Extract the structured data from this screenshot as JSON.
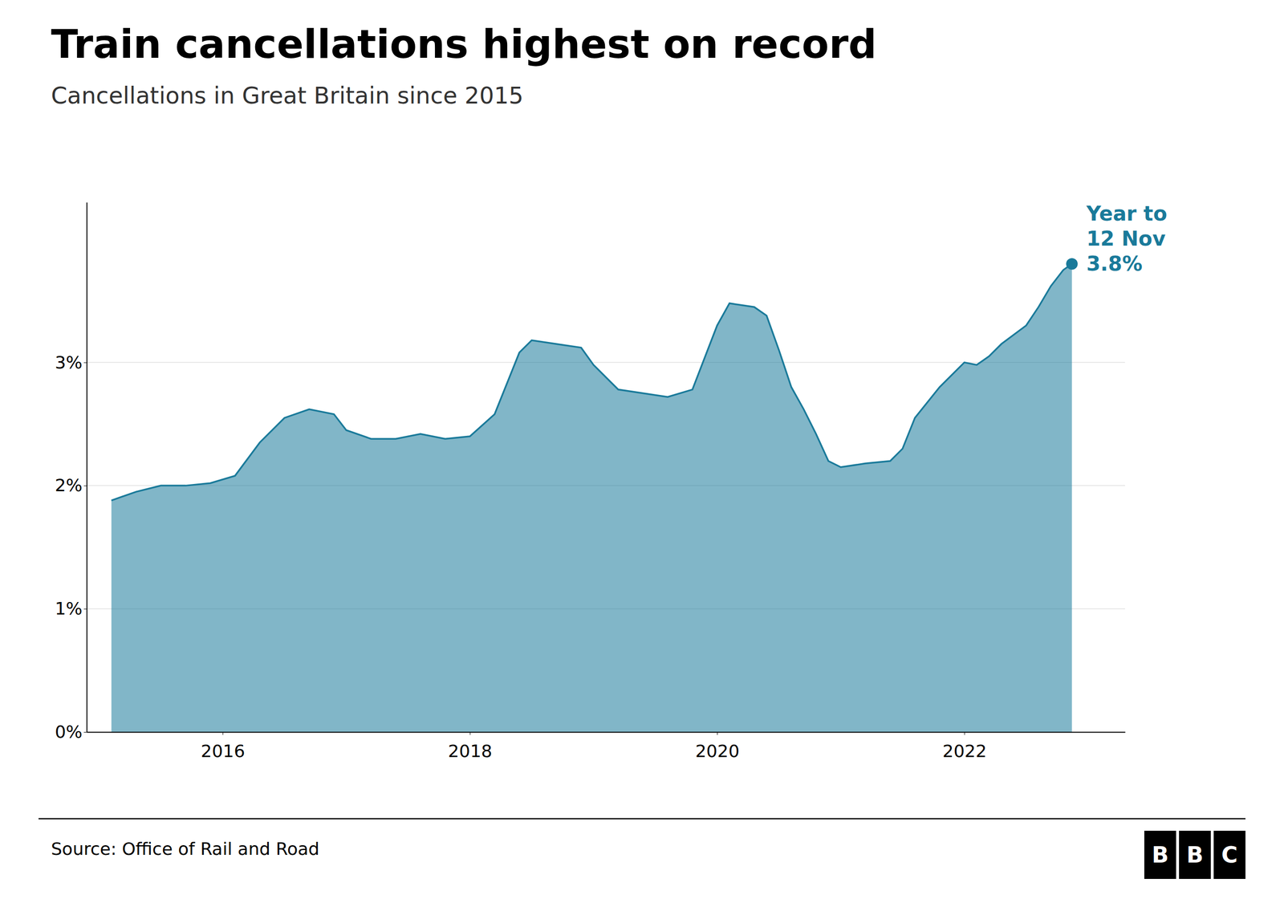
{
  "chart_data": {
    "type": "area",
    "title": "Train cancellations highest on record",
    "subtitle": "Cancellations in Great Britain since 2015",
    "source": "Source: Office of Rail and Road",
    "annotations": [
      "Year to",
      "12 Nov",
      "3.8%"
    ],
    "logo": [
      "B",
      "B",
      "C"
    ],
    "color": "#1a7a9a",
    "grid": true,
    "xlim": [
      2014.9,
      2023.3
    ],
    "ylim": [
      0,
      4.3
    ],
    "xticks": [
      2016,
      2018,
      2020,
      2022
    ],
    "yticks": [
      {
        "value": 0,
        "label": "0%"
      },
      {
        "value": 1,
        "label": "1%"
      },
      {
        "value": 2,
        "label": "2%"
      },
      {
        "value": 3,
        "label": "3%"
      }
    ],
    "x": [
      2015.1,
      2015.3,
      2015.5,
      2015.7,
      2015.9,
      2016.1,
      2016.3,
      2016.5,
      2016.7,
      2016.9,
      2017.0,
      2017.2,
      2017.4,
      2017.6,
      2017.8,
      2018.0,
      2018.2,
      2018.4,
      2018.5,
      2018.7,
      2018.9,
      2019.0,
      2019.2,
      2019.4,
      2019.6,
      2019.8,
      2020.0,
      2020.1,
      2020.3,
      2020.4,
      2020.5,
      2020.6,
      2020.7,
      2020.8,
      2020.9,
      2021.0,
      2021.2,
      2021.4,
      2021.5,
      2021.6,
      2021.8,
      2022.0,
      2022.1,
      2022.2,
      2022.3,
      2022.5,
      2022.6,
      2022.7,
      2022.8,
      2022.87
    ],
    "values": [
      1.88,
      1.95,
      2.0,
      2.0,
      2.02,
      2.08,
      2.35,
      2.55,
      2.62,
      2.58,
      2.45,
      2.38,
      2.38,
      2.42,
      2.38,
      2.4,
      2.58,
      3.08,
      3.18,
      3.15,
      3.12,
      2.98,
      2.78,
      2.75,
      2.72,
      2.78,
      3.3,
      3.48,
      3.45,
      3.38,
      3.1,
      2.8,
      2.62,
      2.42,
      2.2,
      2.15,
      2.18,
      2.2,
      2.3,
      2.55,
      2.8,
      3.0,
      2.98,
      3.05,
      3.15,
      3.3,
      3.45,
      3.62,
      3.75,
      3.8
    ]
  }
}
